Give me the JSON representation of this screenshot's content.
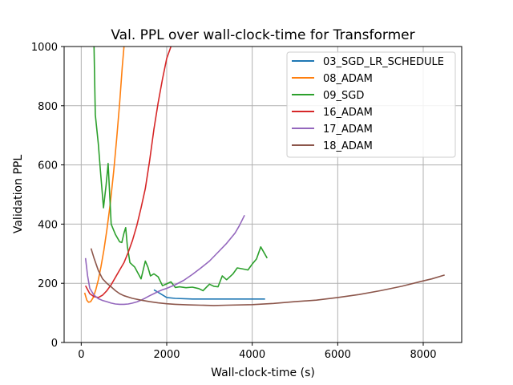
{
  "chart_data": {
    "type": "line",
    "title": "Val. PPL over wall-clock-time for Transformer",
    "xlabel": "Wall-clock-time (s)",
    "ylabel": "Validation PPL",
    "xlim": [
      -400,
      8900
    ],
    "ylim": [
      0,
      1000
    ],
    "xticks": [
      0,
      2000,
      4000,
      6000,
      8000
    ],
    "yticks": [
      0,
      200,
      400,
      600,
      800,
      1000
    ],
    "grid": true,
    "legend_position": "upper-right",
    "series": [
      {
        "name": "03_SGD_LR_SCHEDULE",
        "color": "#1f77b4",
        "points": [
          [
            1700,
            178
          ],
          [
            1850,
            165
          ],
          [
            2000,
            152
          ],
          [
            2200,
            149
          ],
          [
            2600,
            147
          ],
          [
            3200,
            147
          ],
          [
            3800,
            147
          ],
          [
            4300,
            147
          ]
        ]
      },
      {
        "name": "08_ADAM",
        "color": "#ff7f0e",
        "points": [
          [
            80,
            168
          ],
          [
            130,
            143
          ],
          [
            170,
            136
          ],
          [
            220,
            138
          ],
          [
            280,
            152
          ],
          [
            340,
            178
          ],
          [
            400,
            212
          ],
          [
            460,
            255
          ],
          [
            530,
            312
          ],
          [
            600,
            380
          ],
          [
            680,
            470
          ],
          [
            760,
            580
          ],
          [
            830,
            690
          ],
          [
            900,
            810
          ],
          [
            960,
            930
          ],
          [
            1000,
            1000
          ]
        ]
      },
      {
        "name": "09_SGD",
        "color": "#2ca02c",
        "points": [
          [
            300,
            1000
          ],
          [
            330,
            770
          ],
          [
            400,
            670
          ],
          [
            450,
            580
          ],
          [
            520,
            455
          ],
          [
            580,
            530
          ],
          [
            630,
            605
          ],
          [
            700,
            400
          ],
          [
            800,
            365
          ],
          [
            900,
            340
          ],
          [
            950,
            338
          ],
          [
            1000,
            370
          ],
          [
            1040,
            388
          ],
          [
            1080,
            325
          ],
          [
            1140,
            270
          ],
          [
            1250,
            255
          ],
          [
            1400,
            215
          ],
          [
            1500,
            275
          ],
          [
            1560,
            255
          ],
          [
            1620,
            225
          ],
          [
            1700,
            232
          ],
          [
            1800,
            222
          ],
          [
            1900,
            192
          ],
          [
            2000,
            198
          ],
          [
            2100,
            205
          ],
          [
            2200,
            186
          ],
          [
            2300,
            188
          ],
          [
            2450,
            185
          ],
          [
            2600,
            187
          ],
          [
            2750,
            182
          ],
          [
            2850,
            175
          ],
          [
            3000,
            197
          ],
          [
            3100,
            190
          ],
          [
            3200,
            188
          ],
          [
            3300,
            225
          ],
          [
            3400,
            212
          ],
          [
            3550,
            232
          ],
          [
            3650,
            252
          ],
          [
            3800,
            248
          ],
          [
            3900,
            245
          ],
          [
            4000,
            265
          ],
          [
            4100,
            282
          ],
          [
            4200,
            323
          ],
          [
            4350,
            285
          ]
        ]
      },
      {
        "name": "16_ADAM",
        "color": "#d62728",
        "points": [
          [
            100,
            192
          ],
          [
            200,
            165
          ],
          [
            300,
            155
          ],
          [
            400,
            152
          ],
          [
            500,
            160
          ],
          [
            600,
            175
          ],
          [
            700,
            195
          ],
          [
            800,
            220
          ],
          [
            900,
            245
          ],
          [
            1000,
            270
          ],
          [
            1100,
            305
          ],
          [
            1200,
            345
          ],
          [
            1300,
            395
          ],
          [
            1400,
            455
          ],
          [
            1500,
            520
          ],
          [
            1600,
            615
          ],
          [
            1700,
            720
          ],
          [
            1800,
            810
          ],
          [
            1900,
            890
          ],
          [
            2000,
            960
          ],
          [
            2100,
            1000
          ]
        ]
      },
      {
        "name": "17_ADAM",
        "color": "#9467bd",
        "points": [
          [
            100,
            285
          ],
          [
            150,
            225
          ],
          [
            200,
            183
          ],
          [
            300,
            160
          ],
          [
            400,
            148
          ],
          [
            500,
            142
          ],
          [
            600,
            138
          ],
          [
            700,
            133
          ],
          [
            800,
            130
          ],
          [
            900,
            129
          ],
          [
            1000,
            129
          ],
          [
            1100,
            130
          ],
          [
            1200,
            133
          ],
          [
            1300,
            137
          ],
          [
            1400,
            143
          ],
          [
            1500,
            150
          ],
          [
            1600,
            158
          ],
          [
            1700,
            165
          ],
          [
            1800,
            172
          ],
          [
            1900,
            178
          ],
          [
            2000,
            183
          ],
          [
            2200,
            195
          ],
          [
            2400,
            210
          ],
          [
            2600,
            230
          ],
          [
            2800,
            252
          ],
          [
            3000,
            275
          ],
          [
            3200,
            305
          ],
          [
            3400,
            335
          ],
          [
            3600,
            370
          ],
          [
            3700,
            395
          ],
          [
            3820,
            430
          ]
        ]
      },
      {
        "name": "18_ADAM",
        "color": "#8c564b",
        "points": [
          [
            230,
            318
          ],
          [
            300,
            285
          ],
          [
            400,
            243
          ],
          [
            500,
            215
          ],
          [
            600,
            200
          ],
          [
            700,
            188
          ],
          [
            800,
            175
          ],
          [
            900,
            165
          ],
          [
            1000,
            158
          ],
          [
            1200,
            149
          ],
          [
            1400,
            143
          ],
          [
            1600,
            138
          ],
          [
            1800,
            134
          ],
          [
            2000,
            131
          ],
          [
            2200,
            129
          ],
          [
            2500,
            127
          ],
          [
            2800,
            126
          ],
          [
            3100,
            125
          ],
          [
            3400,
            126
          ],
          [
            4000,
            128
          ],
          [
            4500,
            132
          ],
          [
            5000,
            138
          ],
          [
            5500,
            143
          ],
          [
            6000,
            152
          ],
          [
            6500,
            162
          ],
          [
            7000,
            175
          ],
          [
            7500,
            190
          ],
          [
            8000,
            208
          ],
          [
            8200,
            215
          ],
          [
            8500,
            228
          ]
        ]
      }
    ]
  }
}
